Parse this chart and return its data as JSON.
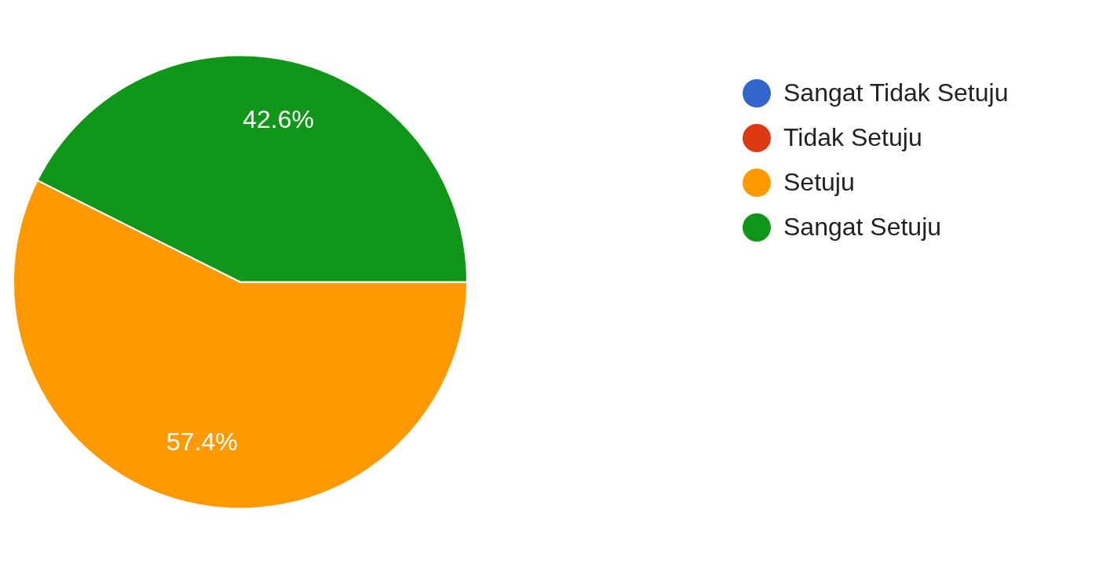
{
  "chart_data": {
    "type": "pie",
    "categories": [
      "Sangat Tidak Setuju",
      "Tidak Setuju",
      "Setuju",
      "Sangat Setuju"
    ],
    "values": [
      0,
      0,
      57.4,
      42.6
    ],
    "colors": [
      "#3366cc",
      "#dc3912",
      "#ff9900",
      "#109618"
    ],
    "value_labels": [
      null,
      null,
      "57.4%",
      "42.6%"
    ],
    "legend": "top right"
  }
}
